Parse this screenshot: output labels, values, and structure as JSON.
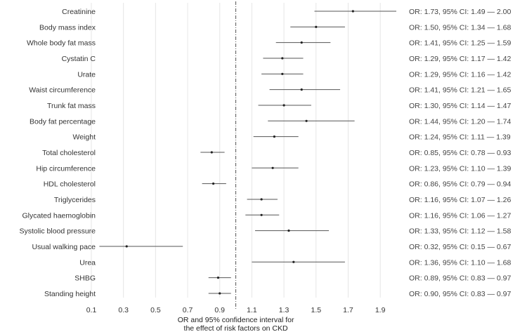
{
  "chart_data": {
    "type": "forest",
    "xlabel": "OR and 95% confidence interval for the effect of risk factors on CKD",
    "xlabel_lines": [
      "OR and 95% confidence interval for",
      "the effect of risk factors on CKD"
    ],
    "xlim": [
      0.1,
      2.0
    ],
    "xticks": [
      0.1,
      0.3,
      0.5,
      0.7,
      0.9,
      1.1,
      1.3,
      1.5,
      1.7,
      1.9
    ],
    "xtick_labels": [
      "0.1",
      "0.3",
      "0.5",
      "0.7",
      "0.9",
      "1.1",
      "1.3",
      "1.5",
      "1.7",
      "1.9"
    ],
    "reference_line": 1.0,
    "grid": true,
    "rows": [
      {
        "name": "Creatinine",
        "or": 1.73,
        "lower": 1.49,
        "upper": 2.0,
        "label": "OR: 1.73, 95% CI: 1.49 — 2.00"
      },
      {
        "name": "Body mass index",
        "or": 1.5,
        "lower": 1.34,
        "upper": 1.68,
        "label": "OR: 1.50, 95% CI: 1.34 — 1.68"
      },
      {
        "name": "Whole body fat mass",
        "or": 1.41,
        "lower": 1.25,
        "upper": 1.59,
        "label": "OR: 1.41, 95% CI: 1.25 — 1.59"
      },
      {
        "name": "Cystatin C",
        "or": 1.29,
        "lower": 1.17,
        "upper": 1.42,
        "label": "OR: 1.29, 95% CI: 1.17 — 1.42"
      },
      {
        "name": "Urate",
        "or": 1.29,
        "lower": 1.16,
        "upper": 1.42,
        "label": "OR: 1.29, 95% CI: 1.16 — 1.42"
      },
      {
        "name": "Waist circumference",
        "or": 1.41,
        "lower": 1.21,
        "upper": 1.65,
        "label": "OR: 1.41, 95% CI: 1.21 — 1.65"
      },
      {
        "name": "Trunk fat mass",
        "or": 1.3,
        "lower": 1.14,
        "upper": 1.47,
        "label": "OR: 1.30, 95% CI: 1.14 — 1.47"
      },
      {
        "name": "Body fat percentage",
        "or": 1.44,
        "lower": 1.2,
        "upper": 1.74,
        "label": "OR: 1.44, 95% CI: 1.20 — 1.74"
      },
      {
        "name": "Weight",
        "or": 1.24,
        "lower": 1.11,
        "upper": 1.39,
        "label": "OR: 1.24, 95% CI: 1.11 — 1.39"
      },
      {
        "name": "Total cholesterol",
        "or": 0.85,
        "lower": 0.78,
        "upper": 0.93,
        "label": "OR: 0.85, 95% CI: 0.78 — 0.93"
      },
      {
        "name": "Hip circumference",
        "or": 1.23,
        "lower": 1.1,
        "upper": 1.39,
        "label": "OR: 1.23, 95% CI: 1.10 — 1.39"
      },
      {
        "name": "HDL cholesterol",
        "or": 0.86,
        "lower": 0.79,
        "upper": 0.94,
        "label": "OR: 0.86, 95% CI: 0.79 — 0.94"
      },
      {
        "name": "Triglycerides",
        "or": 1.16,
        "lower": 1.07,
        "upper": 1.26,
        "label": "OR: 1.16, 95% CI: 1.07 — 1.26"
      },
      {
        "name": "Glycated haemoglobin",
        "or": 1.16,
        "lower": 1.06,
        "upper": 1.27,
        "label": "OR: 1.16, 95% CI: 1.06 — 1.27"
      },
      {
        "name": "Systolic blood pressure",
        "or": 1.33,
        "lower": 1.12,
        "upper": 1.58,
        "label": "OR: 1.33, 95% CI: 1.12 — 1.58"
      },
      {
        "name": "Usual walking pace",
        "or": 0.32,
        "lower": 0.15,
        "upper": 0.67,
        "label": "OR: 0.32, 95% CI: 0.15 — 0.67"
      },
      {
        "name": "Urea",
        "or": 1.36,
        "lower": 1.1,
        "upper": 1.68,
        "label": "OR: 1.36, 95% CI: 1.10 — 1.68"
      },
      {
        "name": "SHBG",
        "or": 0.89,
        "lower": 0.83,
        "upper": 0.97,
        "label": "OR: 0.89, 95% CI: 0.83 — 0.97"
      },
      {
        "name": "Standing height",
        "or": 0.9,
        "lower": 0.83,
        "upper": 0.97,
        "label": "OR: 0.90, 95% CI: 0.83 — 0.97"
      }
    ]
  }
}
